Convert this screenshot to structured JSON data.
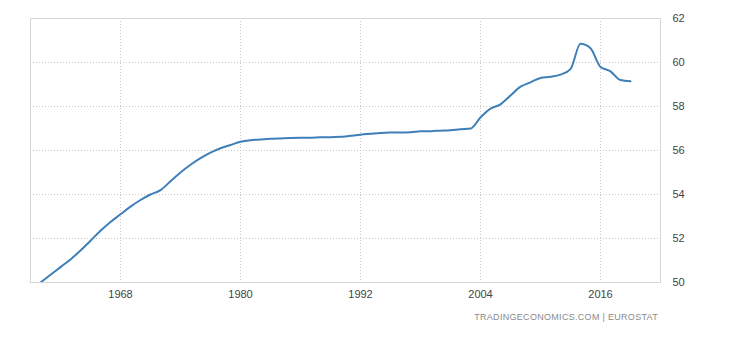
{
  "chart_data": {
    "type": "line",
    "caption": "TRADINGECONOMICS.COM | EUROSTAT",
    "x": [
      1960,
      1961,
      1962,
      1963,
      1964,
      1965,
      1966,
      1967,
      1968,
      1969,
      1970,
      1971,
      1972,
      1973,
      1974,
      1975,
      1976,
      1977,
      1978,
      1979,
      1980,
      1981,
      1982,
      1983,
      1984,
      1985,
      1986,
      1987,
      1988,
      1989,
      1990,
      1991,
      1992,
      1993,
      1994,
      1995,
      1996,
      1997,
      1998,
      1999,
      2000,
      2001,
      2002,
      2003,
      2004,
      2005,
      2006,
      2007,
      2008,
      2009,
      2010,
      2011,
      2012,
      2013,
      2014,
      2015,
      2016,
      2017,
      2018,
      2019
    ],
    "values": [
      50.0,
      50.35,
      50.7,
      51.05,
      51.45,
      51.9,
      52.35,
      52.75,
      53.1,
      53.45,
      53.75,
      54.0,
      54.2,
      54.6,
      55.0,
      55.35,
      55.65,
      55.9,
      56.1,
      56.25,
      56.4,
      56.47,
      56.5,
      56.53,
      56.55,
      56.57,
      56.58,
      56.58,
      56.6,
      56.6,
      56.62,
      56.67,
      56.72,
      56.76,
      56.8,
      56.82,
      56.82,
      56.83,
      56.87,
      56.88,
      56.9,
      56.92,
      56.97,
      57.0,
      57.5,
      57.9,
      58.1,
      58.5,
      58.9,
      59.1,
      59.3,
      59.35,
      59.45,
      59.7,
      60.85,
      60.65,
      59.8,
      59.6,
      59.2,
      59.15
    ],
    "color": "#3f7fb8",
    "xlim": [
      1959,
      2022
    ],
    "xticks": [
      1968,
      1980,
      1992,
      2004,
      2016
    ],
    "ylim": [
      50,
      62
    ],
    "yticks": [
      50,
      52,
      54,
      56,
      58,
      60,
      62
    ],
    "grid": true
  }
}
